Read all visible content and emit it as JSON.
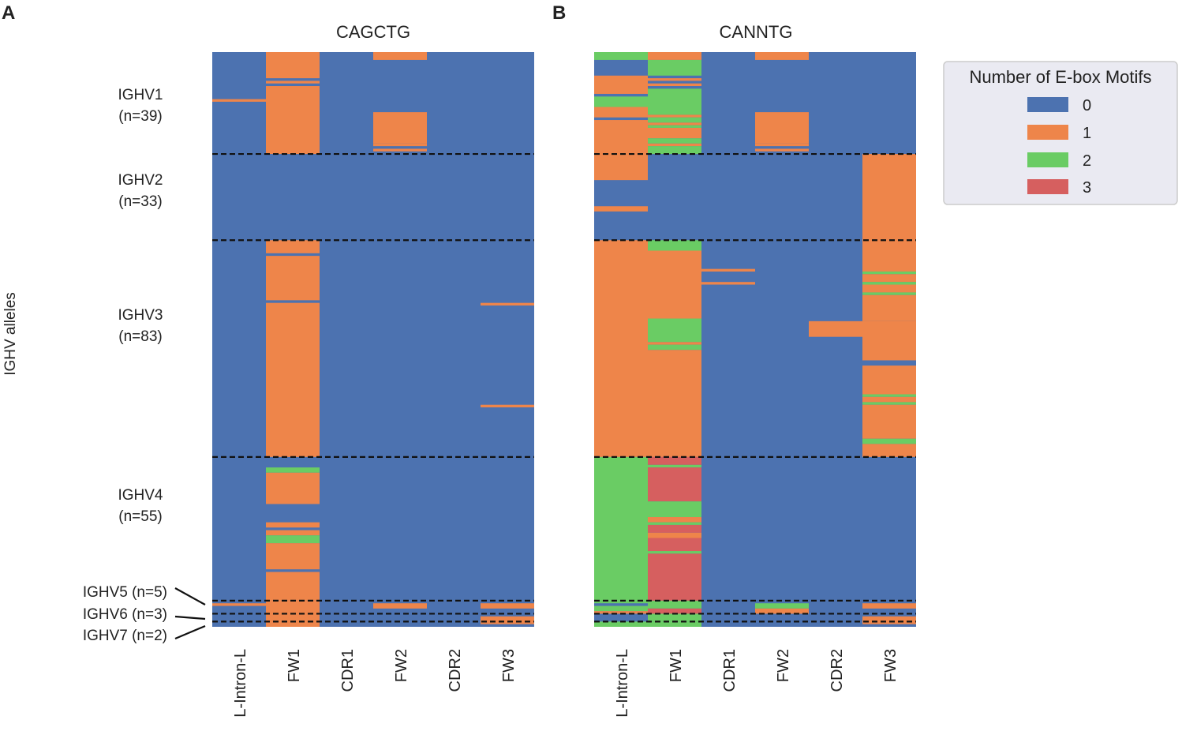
{
  "chart_data": [
    {
      "type": "heatmap",
      "panel": "A",
      "title": "CAGCTG",
      "ylabel": "IGHV alleles",
      "columns": [
        "L-Intron-L",
        "FW1",
        "CDR1",
        "FW2",
        "CDR2",
        "FW3"
      ],
      "total_rows": 220,
      "background_value": 0,
      "groups": [
        {
          "label": "IGHV1",
          "count_label": "(n=39)",
          "start": 0,
          "n": 39
        },
        {
          "label": "IGHV2",
          "count_label": "(n=33)",
          "start": 39,
          "n": 33
        },
        {
          "label": "IGHV3",
          "count_label": "(n=83)",
          "start": 72,
          "n": 83
        },
        {
          "label": "IGHV4",
          "count_label": "(n=55)",
          "start": 155,
          "n": 55
        },
        {
          "label": "IGHV5 (n=5)",
          "start": 210,
          "n": 5
        },
        {
          "label": "IGHV6 (n=3)",
          "start": 215,
          "n": 3
        },
        {
          "label": "IGHV7 (n=2)",
          "start": 218,
          "n": 2
        }
      ],
      "cells": [
        [
          0,
          18,
          19,
          1
        ],
        [
          1,
          0,
          10,
          1
        ],
        [
          1,
          11,
          12,
          1
        ],
        [
          1,
          13,
          39,
          1
        ],
        [
          3,
          0,
          3,
          1
        ],
        [
          3,
          23,
          35,
          1
        ],
        [
          3,
          35,
          36,
          1
        ],
        [
          3,
          37,
          38,
          1
        ],
        [
          1,
          72,
          77,
          1
        ],
        [
          1,
          78,
          95,
          1
        ],
        [
          1,
          96,
          155,
          1
        ],
        [
          5,
          96,
          97,
          1
        ],
        [
          5,
          135,
          136,
          1
        ],
        [
          1,
          159,
          161,
          2
        ],
        [
          1,
          161,
          173,
          1
        ],
        [
          1,
          180,
          182,
          1
        ],
        [
          1,
          183,
          185,
          1
        ],
        [
          1,
          185,
          188,
          2
        ],
        [
          1,
          188,
          198,
          1
        ],
        [
          1,
          199,
          210,
          1
        ],
        [
          1,
          210,
          220,
          1
        ],
        [
          0,
          211,
          212,
          1
        ],
        [
          3,
          211,
          213,
          1
        ],
        [
          5,
          211,
          213,
          1
        ],
        [
          5,
          216,
          219,
          1
        ]
      ]
    },
    {
      "type": "heatmap",
      "panel": "B",
      "title": "CANNTG",
      "columns": [
        "L-Intron-L",
        "FW1",
        "CDR1",
        "FW2",
        "CDR2",
        "FW3"
      ],
      "total_rows": 220,
      "background_value": 0,
      "cells": [
        [
          0,
          0,
          3,
          2
        ],
        [
          0,
          9,
          16,
          1
        ],
        [
          0,
          17,
          21,
          2
        ],
        [
          0,
          21,
          25,
          1
        ],
        [
          0,
          26,
          49,
          1
        ],
        [
          0,
          59,
          61,
          1
        ],
        [
          0,
          72,
          155,
          1
        ],
        [
          0,
          155,
          211,
          2
        ],
        [
          0,
          212,
          214,
          2
        ],
        [
          0,
          214,
          215,
          1
        ],
        [
          0,
          218,
          220,
          2
        ],
        [
          1,
          0,
          3,
          1
        ],
        [
          1,
          3,
          9,
          2
        ],
        [
          1,
          10,
          11,
          1
        ],
        [
          1,
          12,
          13,
          1
        ],
        [
          1,
          14,
          24,
          2
        ],
        [
          1,
          24,
          25,
          1
        ],
        [
          1,
          25,
          27,
          2
        ],
        [
          1,
          27,
          28,
          1
        ],
        [
          1,
          28,
          29,
          2
        ],
        [
          1,
          29,
          33,
          1
        ],
        [
          1,
          33,
          35,
          2
        ],
        [
          1,
          35,
          36,
          1
        ],
        [
          1,
          36,
          39,
          2
        ],
        [
          1,
          72,
          76,
          2
        ],
        [
          1,
          76,
          102,
          1
        ],
        [
          1,
          102,
          111,
          2
        ],
        [
          1,
          111,
          112,
          1
        ],
        [
          1,
          112,
          114,
          2
        ],
        [
          1,
          114,
          155,
          1
        ],
        [
          1,
          155,
          158,
          3
        ],
        [
          1,
          158,
          159,
          2
        ],
        [
          1,
          159,
          172,
          3
        ],
        [
          1,
          172,
          178,
          2
        ],
        [
          1,
          178,
          180,
          1
        ],
        [
          1,
          180,
          181,
          2
        ],
        [
          1,
          181,
          184,
          3
        ],
        [
          1,
          184,
          186,
          1
        ],
        [
          1,
          186,
          191,
          3
        ],
        [
          1,
          191,
          192,
          2
        ],
        [
          1,
          192,
          210,
          3
        ],
        [
          1,
          210,
          213,
          2
        ],
        [
          1,
          213,
          215,
          3
        ],
        [
          1,
          215,
          218,
          2
        ],
        [
          1,
          218,
          220,
          2
        ],
        [
          2,
          83,
          84,
          1
        ],
        [
          2,
          88,
          89,
          1
        ],
        [
          3,
          0,
          3,
          1
        ],
        [
          3,
          23,
          35,
          1
        ],
        [
          3,
          35,
          36,
          1
        ],
        [
          3,
          37,
          38,
          1
        ],
        [
          3,
          211,
          213,
          2
        ],
        [
          3,
          213,
          215,
          1
        ],
        [
          4,
          103,
          109,
          1
        ],
        [
          5,
          39,
          84,
          1
        ],
        [
          5,
          84,
          85,
          2
        ],
        [
          5,
          85,
          88,
          1
        ],
        [
          5,
          88,
          89,
          2
        ],
        [
          5,
          89,
          92,
          1
        ],
        [
          5,
          92,
          93,
          2
        ],
        [
          5,
          93,
          103,
          1
        ],
        [
          5,
          103,
          118,
          1
        ],
        [
          5,
          120,
          131,
          1
        ],
        [
          5,
          131,
          132,
          2
        ],
        [
          5,
          132,
          134,
          1
        ],
        [
          5,
          134,
          135,
          2
        ],
        [
          5,
          135,
          148,
          1
        ],
        [
          5,
          148,
          150,
          2
        ],
        [
          5,
          150,
          155,
          1
        ],
        [
          5,
          211,
          213,
          1
        ],
        [
          5,
          216,
          219,
          1
        ]
      ]
    }
  ],
  "tick_label_panel_A": [
    "L-Intron-L",
    "FW1",
    "CDR1",
    "FW2",
    "CDR2",
    "FW3"
  ],
  "legend": {
    "title": "Number of E-box Motifs",
    "entries": [
      {
        "label": "0",
        "color": "#4c72b0"
      },
      {
        "label": "1",
        "color": "#ee854a"
      },
      {
        "label": "2",
        "color": "#6acc64"
      },
      {
        "label": "3",
        "color": "#d65f5f"
      }
    ]
  },
  "colors": {
    "0": "#4c72b0",
    "1": "#ee854a",
    "2": "#6acc64",
    "3": "#d65f5f"
  }
}
